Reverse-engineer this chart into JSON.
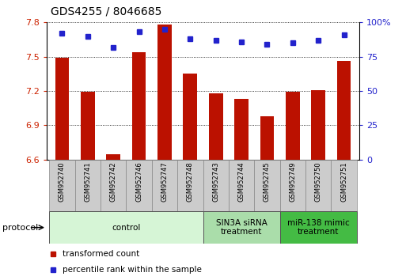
{
  "title": "GDS4255 / 8046685",
  "samples": [
    "GSM952740",
    "GSM952741",
    "GSM952742",
    "GSM952746",
    "GSM952747",
    "GSM952748",
    "GSM952743",
    "GSM952744",
    "GSM952745",
    "GSM952749",
    "GSM952750",
    "GSM952751"
  ],
  "transformed_counts": [
    7.49,
    7.19,
    6.65,
    7.54,
    7.78,
    7.35,
    7.18,
    7.13,
    6.98,
    7.19,
    7.21,
    7.46
  ],
  "percentile_ranks": [
    92,
    90,
    82,
    93,
    95,
    88,
    87,
    86,
    84,
    85,
    87,
    91
  ],
  "ylim_left": [
    6.6,
    7.8
  ],
  "ylim_right": [
    0,
    100
  ],
  "yticks_left": [
    6.6,
    6.9,
    7.2,
    7.5,
    7.8
  ],
  "yticks_right": [
    0,
    25,
    50,
    75,
    100
  ],
  "groups": [
    {
      "label": "control",
      "indices": [
        0,
        1,
        2,
        3,
        4,
        5
      ],
      "color": "#d6f5d6",
      "edgecolor": "#555555"
    },
    {
      "label": "SIN3A siRNA\ntreatment",
      "indices": [
        6,
        7,
        8
      ],
      "color": "#aaddaa",
      "edgecolor": "#555555"
    },
    {
      "label": "miR-138 mimic\ntreatment",
      "indices": [
        9,
        10,
        11
      ],
      "color": "#44bb44",
      "edgecolor": "#555555"
    }
  ],
  "bar_color": "#bb1100",
  "dot_color": "#2222cc",
  "bar_width": 0.55,
  "legend_items": [
    {
      "label": "transformed count",
      "color": "#bb1100"
    },
    {
      "label": "percentile rank within the sample",
      "color": "#2222cc"
    }
  ],
  "protocol_label": "protocol",
  "background_color": "#ffffff",
  "tick_label_color_left": "#cc2200",
  "tick_label_color_right": "#2222cc",
  "sample_box_color": "#cccccc",
  "sample_box_edge": "#888888"
}
